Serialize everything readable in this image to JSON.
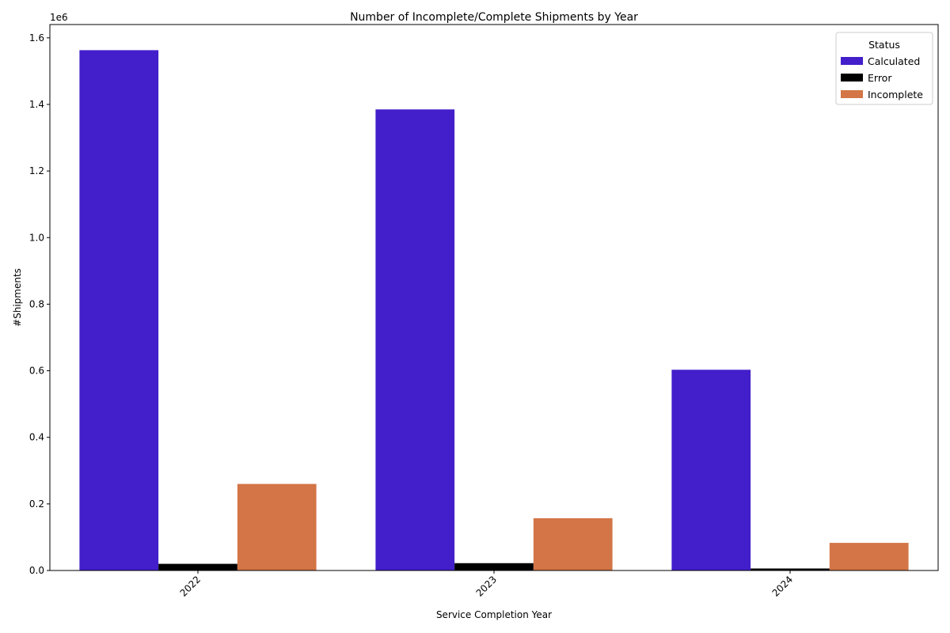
{
  "chart_data": {
    "type": "bar",
    "title": "Number of Incomplete/Complete Shipments by Year",
    "xlabel": "Service Completion Year",
    "ylabel": "#Shipments",
    "y_offset_label": "1e6",
    "categories": [
      "2022",
      "2023",
      "2024"
    ],
    "ylim": [
      0,
      1640000
    ],
    "yticks": [
      0,
      200000,
      400000,
      600000,
      800000,
      1000000,
      1200000,
      1400000,
      1600000
    ],
    "ytick_labels": [
      "0.0",
      "0.2",
      "0.4",
      "0.6",
      "0.8",
      "1.0",
      "1.2",
      "1.4",
      "1.6"
    ],
    "legend_title": "Status",
    "legend_position": "top-right",
    "grid": false,
    "series": [
      {
        "name": "Calculated",
        "color": "#431ecb",
        "values": [
          1563000,
          1385000,
          603000
        ]
      },
      {
        "name": "Error",
        "color": "#000000",
        "values": [
          20000,
          22000,
          6000
        ]
      },
      {
        "name": "Incomplete",
        "color": "#d37546",
        "values": [
          260000,
          157000,
          83000
        ]
      }
    ]
  }
}
